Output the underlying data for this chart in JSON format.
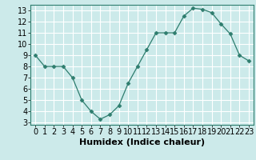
{
  "x": [
    0,
    1,
    2,
    3,
    4,
    5,
    6,
    7,
    8,
    9,
    10,
    11,
    12,
    13,
    14,
    15,
    16,
    17,
    18,
    19,
    20,
    21,
    22,
    23
  ],
  "y": [
    9,
    8,
    8,
    8,
    7,
    5,
    4,
    3.3,
    3.7,
    4.5,
    6.5,
    8,
    9.5,
    11,
    11,
    11,
    12.5,
    13.2,
    13.1,
    12.8,
    11.8,
    10.9,
    9,
    8.5
  ],
  "line_color": "#2e7d6e",
  "marker": "D",
  "marker_size": 2.5,
  "bg_color": "#cceaea",
  "grid_color": "#ffffff",
  "xlabel": "Humidex (Indice chaleur)",
  "xlabel_fontsize": 8,
  "xlabel_weight": "bold",
  "tick_fontsize": 7,
  "xlim": [
    -0.5,
    23.5
  ],
  "ylim": [
    2.8,
    13.5
  ],
  "yticks": [
    3,
    4,
    5,
    6,
    7,
    8,
    9,
    10,
    11,
    12,
    13
  ],
  "xticks": [
    0,
    1,
    2,
    3,
    4,
    5,
    6,
    7,
    8,
    9,
    10,
    11,
    12,
    13,
    14,
    15,
    16,
    17,
    18,
    19,
    20,
    21,
    22,
    23
  ]
}
